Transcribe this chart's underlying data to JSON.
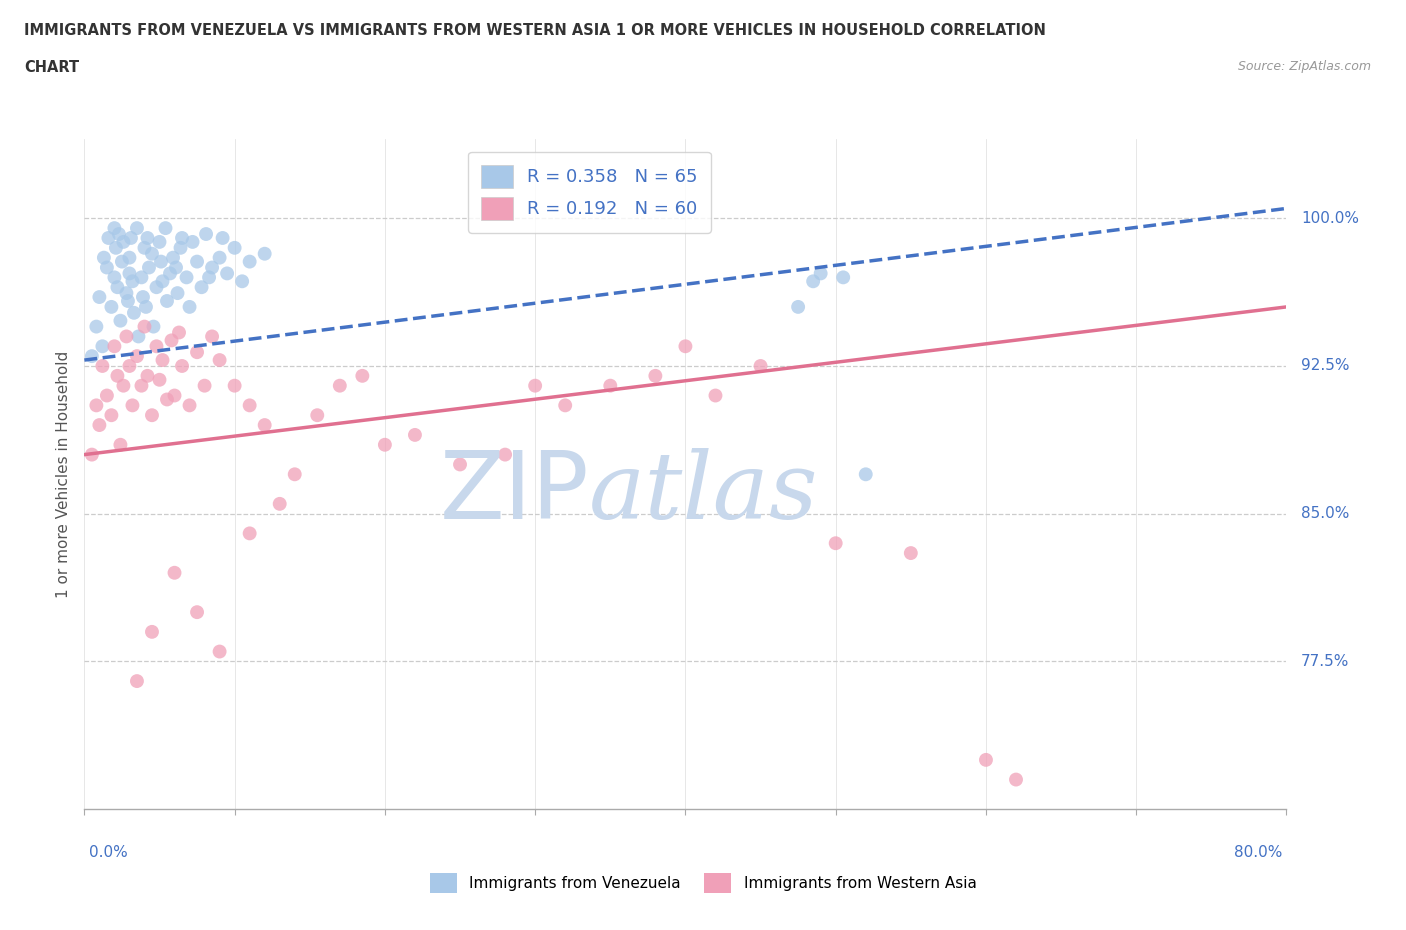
{
  "title_line1": "IMMIGRANTS FROM VENEZUELA VS IMMIGRANTS FROM WESTERN ASIA 1 OR MORE VEHICLES IN HOUSEHOLD CORRELATION",
  "title_line2": "CHART",
  "source": "Source: ZipAtlas.com",
  "ylabel": "1 or more Vehicles in Household",
  "yticks": [
    77.5,
    85.0,
    92.5,
    100.0
  ],
  "xmin": 0.0,
  "xmax": 80.0,
  "ymin": 70.0,
  "ymax": 104.0,
  "venezuela_R": 0.358,
  "venezuela_N": 65,
  "western_asia_R": 0.192,
  "western_asia_N": 60,
  "venezuela_color": "#a8c8e8",
  "western_asia_color": "#f0a0b8",
  "venezuela_line_color": "#4472c4",
  "western_asia_line_color": "#e07090",
  "grid_color": "#cccccc",
  "watermark_color": "#d8e8f8",
  "right_label_color": "#4472c4",
  "venezuela_x": [
    0.5,
    0.8,
    1.0,
    1.2,
    1.3,
    1.5,
    1.6,
    1.8,
    2.0,
    2.0,
    2.1,
    2.2,
    2.3,
    2.4,
    2.5,
    2.6,
    2.8,
    2.9,
    3.0,
    3.0,
    3.1,
    3.2,
    3.3,
    3.5,
    3.6,
    3.8,
    3.9,
    4.0,
    4.1,
    4.2,
    4.3,
    4.5,
    4.6,
    4.8,
    5.0,
    5.1,
    5.2,
    5.4,
    5.5,
    5.7,
    5.9,
    6.1,
    6.2,
    6.4,
    6.5,
    6.8,
    7.0,
    7.2,
    7.5,
    7.8,
    8.1,
    8.3,
    8.5,
    9.0,
    9.2,
    9.5,
    10.0,
    10.5,
    11.0,
    12.0,
    47.5,
    48.5,
    49.0,
    50.5,
    52.0
  ],
  "venezuela_y": [
    93.0,
    94.5,
    96.0,
    93.5,
    98.0,
    97.5,
    99.0,
    95.5,
    97.0,
    99.5,
    98.5,
    96.5,
    99.2,
    94.8,
    97.8,
    98.8,
    96.2,
    95.8,
    98.0,
    97.2,
    99.0,
    96.8,
    95.2,
    99.5,
    94.0,
    97.0,
    96.0,
    98.5,
    95.5,
    99.0,
    97.5,
    98.2,
    94.5,
    96.5,
    98.8,
    97.8,
    96.8,
    99.5,
    95.8,
    97.2,
    98.0,
    97.5,
    96.2,
    98.5,
    99.0,
    97.0,
    95.5,
    98.8,
    97.8,
    96.5,
    99.2,
    97.0,
    97.5,
    98.0,
    99.0,
    97.2,
    98.5,
    96.8,
    97.8,
    98.2,
    95.5,
    96.8,
    97.2,
    97.0,
    87.0
  ],
  "western_asia_x": [
    0.5,
    0.8,
    1.0,
    1.2,
    1.5,
    1.8,
    2.0,
    2.2,
    2.4,
    2.6,
    2.8,
    3.0,
    3.2,
    3.5,
    3.8,
    4.0,
    4.2,
    4.5,
    4.8,
    5.0,
    5.2,
    5.5,
    5.8,
    6.0,
    6.3,
    6.5,
    7.0,
    7.5,
    8.0,
    8.5,
    9.0,
    10.0,
    11.0,
    12.0,
    13.0,
    14.0,
    15.5,
    17.0,
    18.5,
    20.0,
    22.0,
    25.0,
    28.0,
    30.0,
    32.0,
    35.0,
    38.0,
    40.0,
    42.0,
    45.0,
    50.0,
    55.0,
    60.0,
    62.0,
    3.5,
    4.5,
    6.0,
    7.5,
    9.0,
    11.0
  ],
  "western_asia_y": [
    88.0,
    90.5,
    89.5,
    92.5,
    91.0,
    90.0,
    93.5,
    92.0,
    88.5,
    91.5,
    94.0,
    92.5,
    90.5,
    93.0,
    91.5,
    94.5,
    92.0,
    90.0,
    93.5,
    91.8,
    92.8,
    90.8,
    93.8,
    91.0,
    94.2,
    92.5,
    90.5,
    93.2,
    91.5,
    94.0,
    92.8,
    91.5,
    90.5,
    89.5,
    85.5,
    87.0,
    90.0,
    91.5,
    92.0,
    88.5,
    89.0,
    87.5,
    88.0,
    91.5,
    90.5,
    91.5,
    92.0,
    93.5,
    91.0,
    92.5,
    83.5,
    83.0,
    72.5,
    71.5,
    76.5,
    79.0,
    82.0,
    80.0,
    78.0,
    84.0
  ],
  "ven_line_x0": 0.0,
  "ven_line_y0": 92.8,
  "ven_line_x1": 80.0,
  "ven_line_y1": 100.5,
  "wes_line_x0": 0.0,
  "wes_line_y0": 88.0,
  "wes_line_x1": 80.0,
  "wes_line_y1": 95.5
}
